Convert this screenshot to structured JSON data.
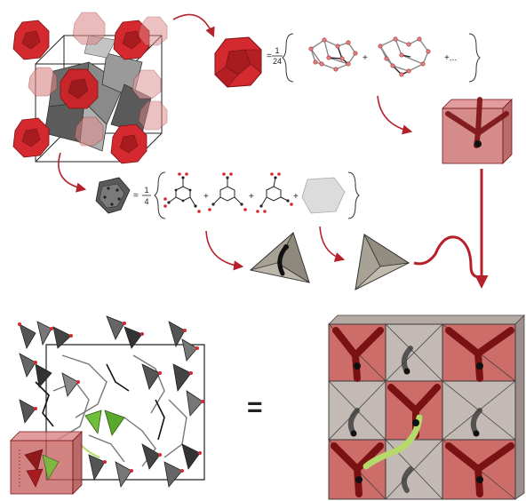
{
  "equation_top": {
    "equals": "=",
    "numerator": "1",
    "denominator": "24",
    "plus_1": "+",
    "plus_2": "+...",
    "plus_2_suffix": ""
  },
  "equation_middle": {
    "equals": "=",
    "numerator": "1",
    "denominator": "4",
    "plus_1": "+",
    "plus_2": "+",
    "plus_3": "+"
  },
  "equation_bottom": {
    "equals": "="
  },
  "colors": {
    "red": "#c8262b",
    "dark_red": "#8e1a1c",
    "pink": "#d98585",
    "gray": "#6b6b6b",
    "dark_gray": "#3a3a3a",
    "tan": "#a8a195",
    "green": "#6fbf3a",
    "arrow": "#b5202a"
  }
}
